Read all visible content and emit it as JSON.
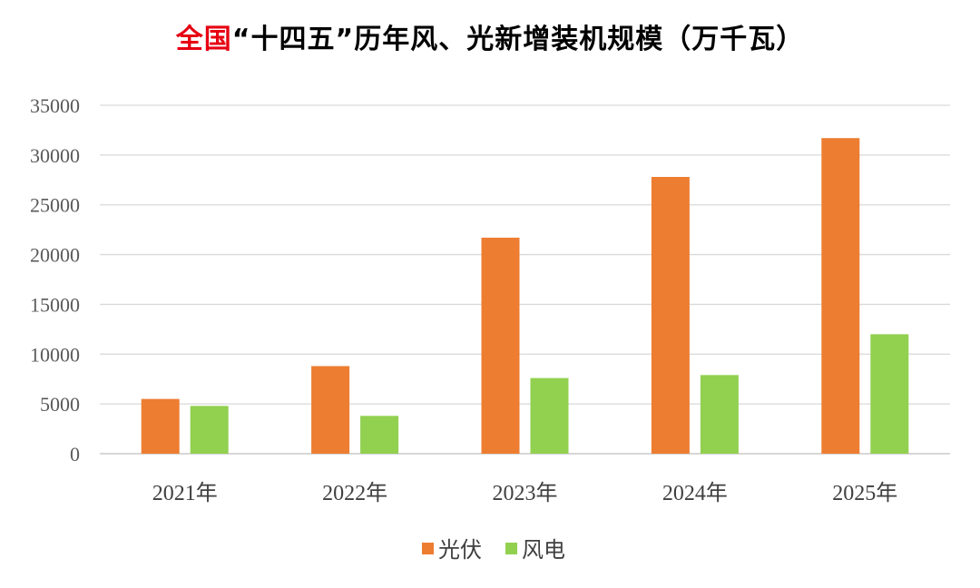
{
  "chart_data": {
    "type": "bar",
    "title_highlight": "全国",
    "title_rest": "“十四五”历年风、光新增装机规模（万千瓦）",
    "categories": [
      "2021年",
      "2022年",
      "2023年",
      "2024年",
      "2025年"
    ],
    "series": [
      {
        "name": "光伏",
        "color": "#ed7d31",
        "values": [
          5500,
          8800,
          21700,
          27800,
          31700
        ]
      },
      {
        "name": "风电",
        "color": "#92d050",
        "values": [
          4800,
          3800,
          7600,
          7900,
          12000
        ]
      }
    ],
    "yticks": [
      "0",
      "5000",
      "10000",
      "15000",
      "20000",
      "25000",
      "30000",
      "35000"
    ],
    "ylim": [
      0,
      35000
    ],
    "grid": true,
    "legend_position": "bottom"
  }
}
